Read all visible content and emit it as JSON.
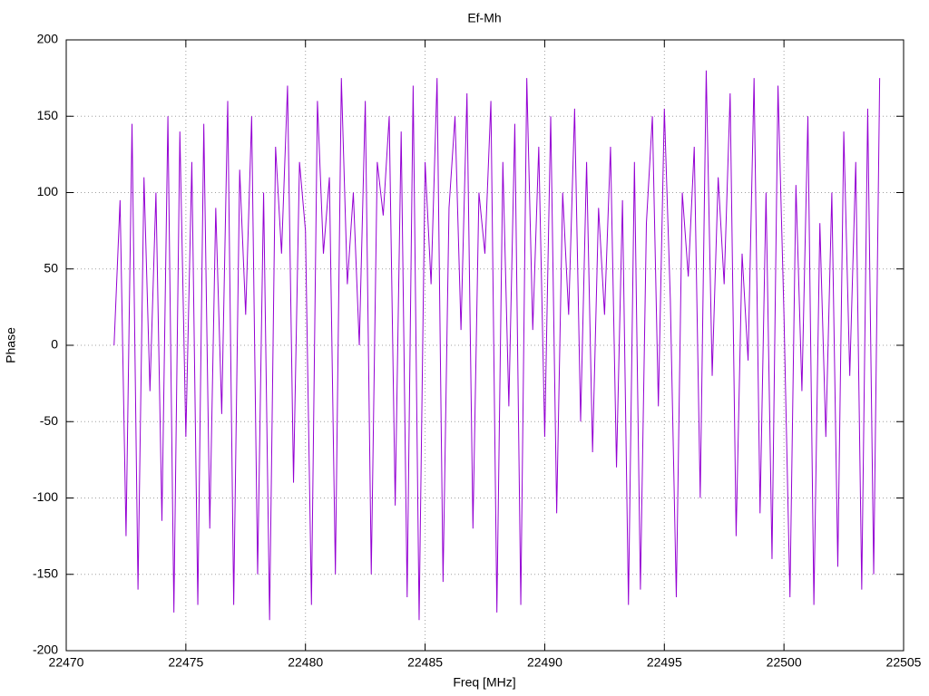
{
  "chart_data": {
    "type": "line",
    "title": "Ef-Mh",
    "x_label": "Freq [MHz]",
    "y_label": "Phase",
    "color": "#9400d3",
    "grid": true,
    "xlim": [
      22470,
      22505
    ],
    "xticks": [
      22470,
      22475,
      22480,
      22485,
      22490,
      22495,
      22500,
      22505
    ],
    "ylim": [
      -200,
      200
    ],
    "yticks": [
      -200,
      -150,
      -100,
      -50,
      0,
      50,
      100,
      150,
      200
    ],
    "x": [
      22472,
      22472.25,
      22472.5,
      22472.75,
      22473,
      22473.25,
      22473.5,
      22473.75,
      22474,
      22474.25,
      22474.5,
      22474.75,
      22475,
      22475.25,
      22475.5,
      22475.75,
      22476,
      22476.25,
      22476.5,
      22476.75,
      22477,
      22477.25,
      22477.5,
      22477.75,
      22478,
      22478.25,
      22478.5,
      22478.75,
      22479,
      22479.25,
      22479.5,
      22479.75,
      22480,
      22480.25,
      22480.5,
      22480.75,
      22481,
      22481.25,
      22481.5,
      22481.75,
      22482,
      22482.25,
      22482.5,
      22482.75,
      22483,
      22483.25,
      22483.5,
      22483.75,
      22484,
      22484.25,
      22484.5,
      22484.75,
      22485,
      22485.25,
      22485.5,
      22485.75,
      22486,
      22486.25,
      22486.5,
      22486.75,
      22487,
      22487.25,
      22487.5,
      22487.75,
      22488,
      22488.25,
      22488.5,
      22488.75,
      22489,
      22489.25,
      22489.5,
      22489.75,
      22490,
      22490.25,
      22490.5,
      22490.75,
      22491,
      22491.25,
      22491.5,
      22491.75,
      22492,
      22492.25,
      22492.5,
      22492.75,
      22493,
      22493.25,
      22493.5,
      22493.75,
      22494,
      22494.25,
      22494.5,
      22494.75,
      22495,
      22495.25,
      22495.5,
      22495.75,
      22496,
      22496.25,
      22496.5,
      22496.75,
      22497,
      22497.25,
      22497.5,
      22497.75,
      22498,
      22498.25,
      22498.5,
      22498.75,
      22499,
      22499.25,
      22499.5,
      22499.75,
      22500,
      22500.25,
      22500.5,
      22500.75,
      22501,
      22501.25,
      22501.5,
      22501.75,
      22502,
      22502.25,
      22502.5,
      22502.75,
      22503,
      22503.25,
      22503.5,
      22503.75,
      22504
    ],
    "values": [
      0,
      95,
      -125,
      145,
      -160,
      110,
      -30,
      100,
      -115,
      150,
      -175,
      140,
      -60,
      120,
      -170,
      145,
      -120,
      90,
      -45,
      160,
      -170,
      115,
      20,
      150,
      -150,
      100,
      -180,
      130,
      60,
      170,
      -90,
      120,
      75,
      -170,
      160,
      60,
      110,
      -150,
      175,
      40,
      100,
      0,
      160,
      -150,
      120,
      85,
      150,
      -105,
      140,
      -165,
      170,
      -180,
      120,
      40,
      175,
      -155,
      90,
      150,
      10,
      165,
      -120,
      100,
      60,
      160,
      -175,
      120,
      -40,
      145,
      -170,
      175,
      10,
      130,
      -60,
      150,
      -110,
      100,
      20,
      155,
      -50,
      120,
      -70,
      90,
      20,
      130,
      -80,
      95,
      -170,
      120,
      -160,
      80,
      150,
      -40,
      155,
      30,
      -165,
      100,
      45,
      130,
      -100,
      180,
      -20,
      110,
      40,
      165,
      -125,
      60,
      -10,
      175,
      -110,
      100,
      -140,
      170,
      20,
      -165,
      105,
      -30,
      150,
      -170,
      80,
      -60,
      100,
      -145,
      140,
      -20,
      120,
      -160,
      155,
      -150,
      175
    ]
  }
}
